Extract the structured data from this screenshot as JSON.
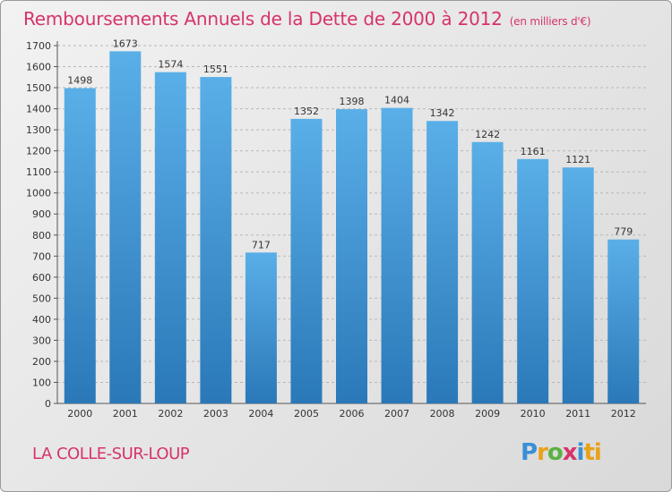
{
  "title": "Remboursements Annuels de la Dette de 2000 à 2012",
  "unit_label": "(en milliers d'€)",
  "city": "LA COLLE-SUR-LOUP",
  "logo": [
    "P",
    "r",
    "o",
    "x",
    "i",
    "ti"
  ],
  "colors": {
    "title": "#d6336c",
    "bar_top": "#5aafe8",
    "bar_bottom": "#2a78b8"
  },
  "chart_data": {
    "type": "bar",
    "title": "Remboursements Annuels de la Dette de 2000 à 2012",
    "xlabel": "",
    "ylabel": "",
    "categories": [
      "2000",
      "2001",
      "2002",
      "2003",
      "2004",
      "2005",
      "2006",
      "2007",
      "2008",
      "2009",
      "2010",
      "2011",
      "2012"
    ],
    "values": [
      1498,
      1673,
      1574,
      1551,
      717,
      1352,
      1398,
      1404,
      1342,
      1242,
      1161,
      1121,
      779
    ],
    "ylim": [
      0,
      1700
    ],
    "yticks": [
      0,
      100,
      200,
      300,
      400,
      500,
      600,
      700,
      800,
      900,
      1000,
      1100,
      1200,
      1300,
      1400,
      1500,
      1600,
      1700
    ],
    "grid": true
  }
}
